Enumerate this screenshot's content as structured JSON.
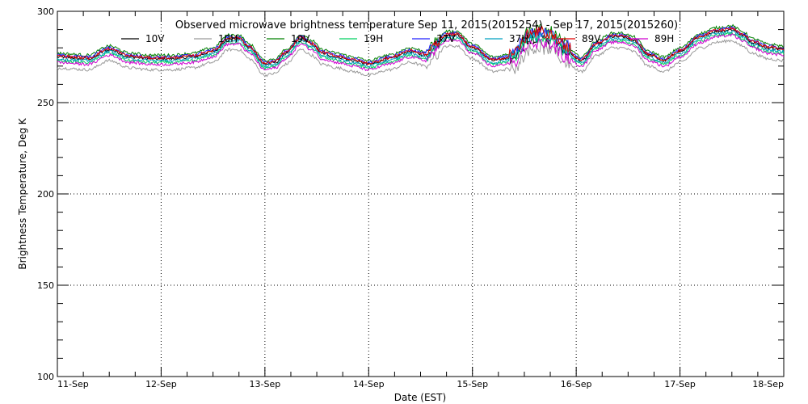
{
  "chart_data": {
    "type": "line",
    "title": "Observed microwave brightness temperature Sep 11, 2015(2015254) - Sep 17, 2015(2015260)",
    "xlabel": "Date (EST)",
    "ylabel": "Brightness Temperature, Deg K",
    "x_tick_labels": [
      "11-Sep",
      "12-Sep",
      "13-Sep",
      "14-Sep",
      "15-Sep",
      "16-Sep",
      "17-Sep",
      "18-Sep"
    ],
    "y_ticks": [
      100,
      150,
      200,
      250,
      300
    ],
    "xlim": [
      0,
      7
    ],
    "ylim": [
      100,
      300
    ],
    "grid": true,
    "legend_position": "top",
    "x_note": "x values are days since 11-Sep 00:00",
    "base_profile": {
      "x": [
        0,
        0.3,
        0.5,
        0.7,
        0.9,
        1.1,
        1.3,
        1.5,
        1.65,
        1.75,
        1.85,
        2.0,
        2.1,
        2.2,
        2.35,
        2.45,
        2.55,
        2.7,
        2.85,
        3.0,
        3.2,
        3.4,
        3.55,
        3.65,
        3.75,
        3.85,
        4.0,
        4.2,
        4.4,
        4.55,
        4.65,
        4.75,
        4.9,
        5.05,
        5.2,
        5.35,
        5.45,
        5.55,
        5.7,
        5.85,
        6.0,
        6.2,
        6.35,
        6.5,
        6.6,
        6.7,
        6.85,
        7.0
      ],
      "y": [
        275,
        274,
        279,
        275,
        274,
        274,
        275,
        278,
        285,
        285,
        280,
        271,
        272,
        277,
        285,
        282,
        277,
        275,
        273,
        271,
        274,
        278,
        276,
        282,
        287,
        287,
        280,
        273,
        275,
        285,
        286,
        285,
        278,
        273,
        282,
        286,
        286,
        284,
        276,
        273,
        278,
        286,
        289,
        290,
        287,
        283,
        280,
        279
      ]
    },
    "series": [
      {
        "name": "10V",
        "color": "#000000",
        "offset": 0
      },
      {
        "name": "10H",
        "color": "#9a9a9a",
        "offset": -6
      },
      {
        "name": "19V",
        "color": "#008000",
        "offset": 2
      },
      {
        "name": "19H",
        "color": "#00d060",
        "offset": -2
      },
      {
        "name": "37V",
        "color": "#2020ff",
        "offset": 1
      },
      {
        "name": "37H",
        "color": "#00a0c0",
        "offset": -1
      },
      {
        "name": "89V",
        "color": "#e00000",
        "offset": 0.5
      },
      {
        "name": "89H",
        "color": "#d000d0",
        "offset": -3
      }
    ]
  }
}
